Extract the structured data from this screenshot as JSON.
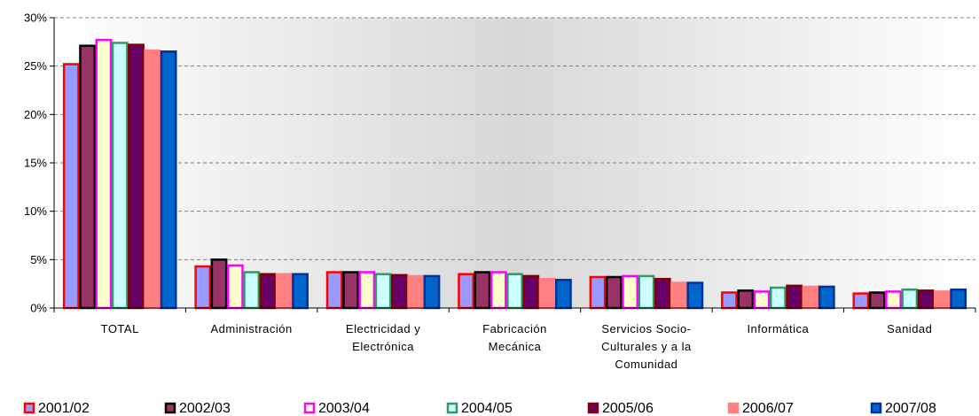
{
  "chart_data": {
    "type": "bar",
    "categories": [
      [
        "TOTAL"
      ],
      [
        "Administración"
      ],
      [
        "Electricidad y",
        "Electrónica"
      ],
      [
        "Fabricación",
        "Mecánica"
      ],
      [
        "Servicios Socio-",
        "Culturales y a la",
        "Comunidad"
      ],
      [
        "Informática"
      ],
      [
        "Sanidad"
      ]
    ],
    "series": [
      {
        "name": "2001/02",
        "values": [
          25.2,
          4.3,
          3.7,
          3.5,
          3.2,
          1.6,
          1.5
        ],
        "fill": "#9999ff",
        "stroke": "#ff0000"
      },
      {
        "name": "2002/03",
        "values": [
          27.1,
          5.0,
          3.7,
          3.7,
          3.2,
          1.8,
          1.6
        ],
        "fill": "#993366",
        "stroke": "#000000"
      },
      {
        "name": "2003/04",
        "values": [
          27.7,
          4.4,
          3.7,
          3.7,
          3.3,
          1.7,
          1.7
        ],
        "fill": "#ffffcc",
        "stroke": "#ff00ff"
      },
      {
        "name": "2004/05",
        "values": [
          27.4,
          3.7,
          3.5,
          3.5,
          3.3,
          2.1,
          1.9
        ],
        "fill": "#ccffff",
        "stroke": "#339966"
      },
      {
        "name": "2005/06",
        "values": [
          27.2,
          3.5,
          3.4,
          3.3,
          3.0,
          2.3,
          1.8
        ],
        "fill": "#660066",
        "stroke": "#800000"
      },
      {
        "name": "2006/07",
        "values": [
          26.6,
          3.5,
          3.3,
          3.0,
          2.6,
          2.2,
          1.7
        ],
        "fill": "#ff8080",
        "stroke": "#ff8080"
      },
      {
        "name": "2007/08",
        "values": [
          26.5,
          3.5,
          3.3,
          2.9,
          2.6,
          2.2,
          1.9
        ],
        "fill": "#0066cc",
        "stroke": "#003399"
      }
    ],
    "y_ticks": [
      "0%",
      "5%",
      "10%",
      "15%",
      "20%",
      "25%",
      "30%"
    ],
    "ylim": [
      0,
      30
    ],
    "grid": true,
    "legend_position": "bottom"
  }
}
